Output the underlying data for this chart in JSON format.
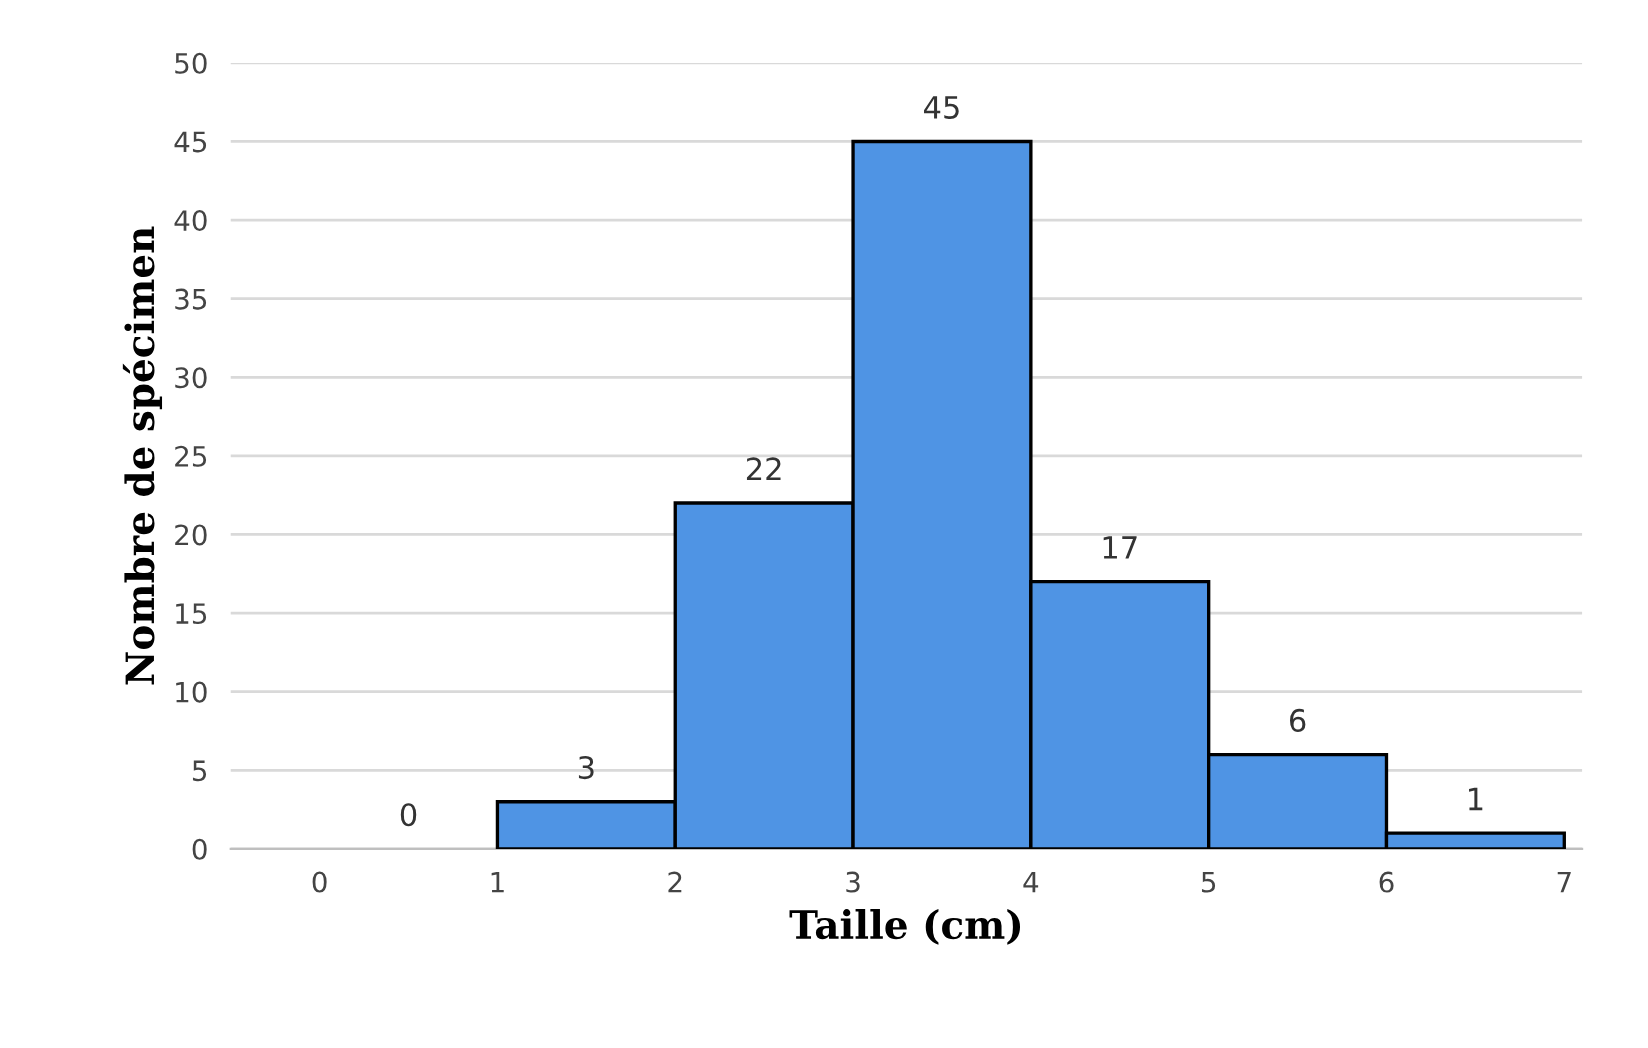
{
  "chart_data": {
    "type": "histogram",
    "xlabel": "Taille (cm)",
    "ylabel": "Nombre de spécimen",
    "bins": [
      0,
      1,
      2,
      3,
      4,
      5,
      6,
      7
    ],
    "values": [
      0,
      3,
      22,
      45,
      17,
      6,
      1
    ],
    "color": "#4f94e4",
    "xlim": [
      -0.5,
      7.1
    ],
    "xticks": [
      0,
      1,
      2,
      3,
      4,
      5,
      6,
      7
    ],
    "ylim": [
      0,
      50
    ],
    "yticks": [
      0,
      5,
      10,
      15,
      20,
      25,
      30,
      35,
      40,
      45,
      50
    ],
    "grid": "y",
    "data_labels": true
  }
}
